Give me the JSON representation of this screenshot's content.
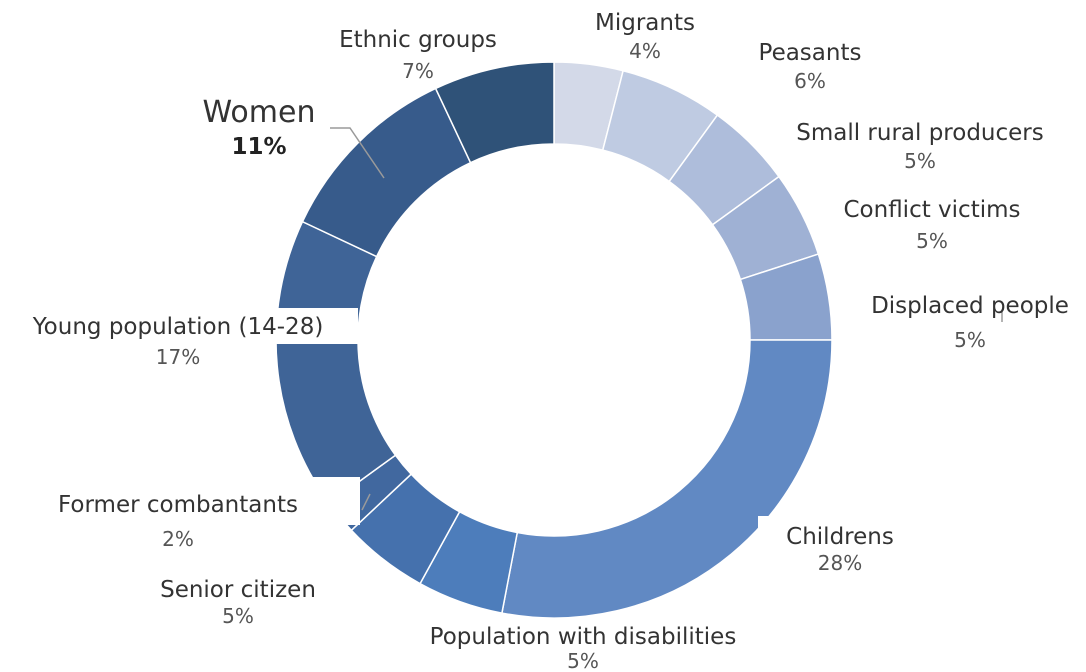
{
  "chart_data": {
    "type": "pie",
    "donut": true,
    "slices": [
      {
        "label": "Migrants",
        "value": 4,
        "pct_label": "4%",
        "color": "#d3d9e8"
      },
      {
        "label": "Peasants",
        "value": 6,
        "pct_label": "6%",
        "color": "#bfcbe2"
      },
      {
        "label": "Small rural producers",
        "value": 5,
        "pct_label": "5%",
        "color": "#aebddb"
      },
      {
        "label": "Conflict victims",
        "value": 5,
        "pct_label": "5%",
        "color": "#9fb1d4"
      },
      {
        "label": "Displaced people",
        "value": 5,
        "pct_label": "5%",
        "color": "#8aa2cd"
      },
      {
        "label": "Childrens",
        "value": 28,
        "pct_label": "28%",
        "color": "#6189c3"
      },
      {
        "label": "Population with disabilities",
        "value": 5,
        "pct_label": "5%",
        "color": "#4d7dbb"
      },
      {
        "label": "Senior citizen",
        "value": 5,
        "pct_label": "5%",
        "color": "#4571ad"
      },
      {
        "label": "Former combantants",
        "value": 2,
        "pct_label": "2%",
        "color": "#41689f"
      },
      {
        "label": "Young population (14-28)",
        "value": 17,
        "pct_label": "17%",
        "color": "#3f6497"
      },
      {
        "label": "Women",
        "value": 11,
        "pct_label": "11%",
        "color": "#375b8b",
        "highlight": true
      },
      {
        "label": "Ethnic groups",
        "value": 7,
        "pct_label": "7%",
        "color": "#2f5278"
      }
    ]
  }
}
